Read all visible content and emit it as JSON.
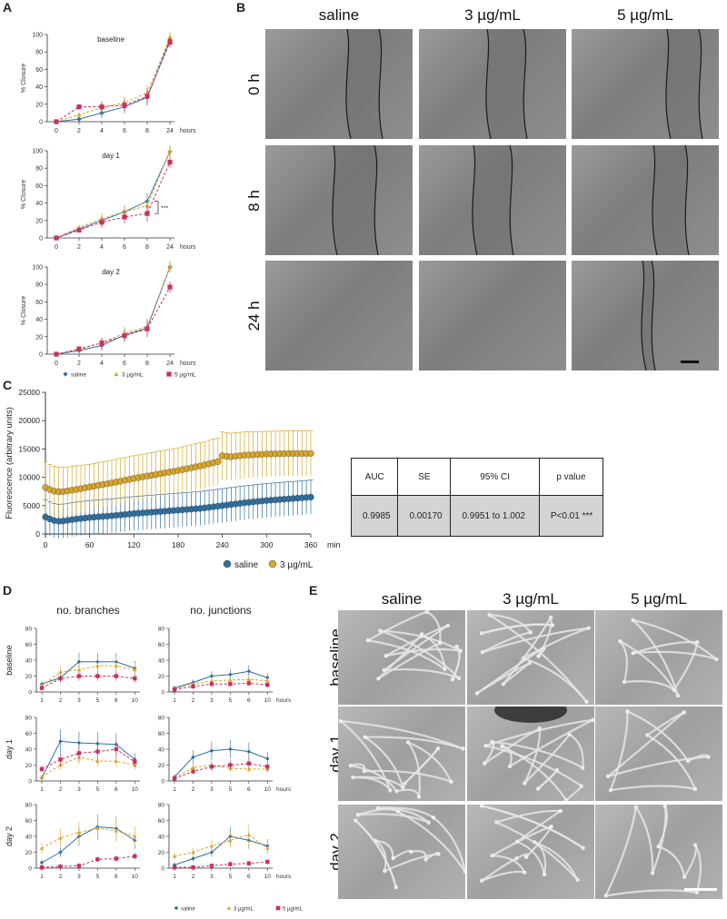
{
  "panels": {
    "A": "A",
    "B": "B",
    "C": "C",
    "D": "D",
    "E": "E"
  },
  "colors": {
    "saline": "#2f6f9f",
    "low": "#d8a628",
    "high": "#c8325e",
    "dark_line": "#1b1b1b"
  },
  "closure": {
    "ylabel": "% Closure",
    "x_unit": "hours",
    "x_ticks": [
      "0",
      "2",
      "4",
      "6",
      "8",
      "24"
    ],
    "y_ticks": [
      "0",
      "20",
      "40",
      "60",
      "80",
      "100"
    ],
    "legend": [
      "saline",
      "3 µg/mL",
      "5 µg/mL"
    ],
    "significance": "***"
  },
  "fluorescence": {
    "ylabel": "Fluorescence (arbitrary units)",
    "x_unit": "min",
    "x_ticks": [
      "0",
      "60",
      "120",
      "180",
      "240",
      "300",
      "360"
    ],
    "y_ticks": [
      "0",
      "5000",
      "10000",
      "15000",
      "20000",
      "25000"
    ],
    "legend": [
      "saline",
      "3 µg/mL"
    ]
  },
  "auc_table": {
    "headers": [
      "AUC",
      "SE",
      "95%  CI",
      "p value"
    ],
    "values": [
      "0.9985",
      "0.00170",
      "0.9951 to 1.002",
      "P<0.01 ***"
    ]
  },
  "tubes": {
    "titles": [
      "no. branches",
      "no. junctions"
    ],
    "x_ticks": [
      "1",
      "2",
      "3",
      "5",
      "6",
      "10"
    ],
    "x_unit": "hours",
    "y_ticks": [
      "0",
      "20",
      "40",
      "60",
      "80"
    ],
    "legend": [
      "saline",
      "3 µg/mL",
      "5 µg/mL"
    ]
  },
  "scratch": {
    "columns": [
      "saline",
      "3 µg/mL",
      "5 µg/mL"
    ],
    "rows": [
      "0 h",
      "8 h",
      "24 h"
    ]
  },
  "tube_images": {
    "columns": [
      "saline",
      "3 µg/mL",
      "5 µg/mL"
    ],
    "rows": [
      "baseline",
      "day 1",
      "day 2"
    ]
  },
  "chart_data": [
    {
      "type": "line",
      "panel": "A",
      "title": "baseline",
      "xlabel": "",
      "ylabel": "% Closure",
      "x": [
        "0",
        "2",
        "4",
        "6",
        "8",
        "24"
      ],
      "ylim": [
        0,
        100
      ],
      "series": [
        {
          "name": "saline",
          "values": [
            0,
            3,
            10,
            17,
            28,
            94
          ]
        },
        {
          "name": "3 µg/mL",
          "values": [
            0,
            8,
            16,
            22,
            33,
            97
          ]
        },
        {
          "name": "5 µg/mL",
          "values": [
            0,
            17,
            17,
            19,
            29,
            91
          ]
        }
      ]
    },
    {
      "type": "line",
      "panel": "A",
      "title": "day 1",
      "xlabel": "",
      "ylabel": "% Closure",
      "x": [
        "0",
        "2",
        "4",
        "6",
        "8",
        "24"
      ],
      "ylim": [
        0,
        100
      ],
      "series": [
        {
          "name": "saline",
          "values": [
            0,
            10,
            20,
            30,
            42,
            99
          ]
        },
        {
          "name": "3 µg/mL",
          "values": [
            0,
            12,
            22,
            30,
            37,
            100
          ]
        },
        {
          "name": "5 µg/mL",
          "values": [
            0,
            9,
            18,
            24,
            28,
            87
          ]
        }
      ]
    },
    {
      "type": "line",
      "panel": "A",
      "title": "day 2",
      "xlabel": "",
      "ylabel": "% Closure",
      "x": [
        "0",
        "2",
        "4",
        "6",
        "8",
        "24"
      ],
      "ylim": [
        0,
        100
      ],
      "series": [
        {
          "name": "saline",
          "values": [
            0,
            4,
            10,
            22,
            30,
            100
          ]
        },
        {
          "name": "3 µg/mL",
          "values": [
            0,
            5,
            13,
            24,
            32,
            100
          ]
        },
        {
          "name": "5 µg/mL",
          "values": [
            0,
            6,
            13,
            21,
            29,
            77
          ]
        }
      ]
    },
    {
      "type": "line",
      "panel": "C",
      "title": "",
      "xlabel": "min",
      "ylabel": "Fluorescence (arbitrary units)",
      "ylim": [
        0,
        25000
      ],
      "xlim": [
        0,
        360
      ],
      "series": [
        {
          "name": "saline",
          "points": [
            [
              0,
              3000
            ],
            [
              10,
              2400
            ],
            [
              20,
              2200
            ],
            [
              40,
              2600
            ],
            [
              60,
              2900
            ],
            [
              90,
              3200
            ],
            [
              120,
              3600
            ],
            [
              150,
              3900
            ],
            [
              180,
              4200
            ],
            [
              210,
              4500
            ],
            [
              240,
              5000
            ],
            [
              270,
              5500
            ],
            [
              300,
              5900
            ],
            [
              330,
              6200
            ],
            [
              360,
              6500
            ]
          ],
          "error": [
            [
              0,
              3000
            ],
            [
              30,
              3000
            ],
            [
              60,
              3000
            ],
            [
              120,
              3000
            ],
            [
              180,
              3000
            ],
            [
              240,
              3000
            ],
            [
              300,
              3000
            ],
            [
              360,
              3000
            ]
          ]
        },
        {
          "name": "3 µg/mL",
          "points": [
            [
              0,
              8200
            ],
            [
              10,
              7600
            ],
            [
              20,
              7400
            ],
            [
              40,
              7800
            ],
            [
              60,
              8300
            ],
            [
              90,
              9000
            ],
            [
              120,
              9800
            ],
            [
              150,
              10500
            ],
            [
              180,
              11200
            ],
            [
              210,
              12000
            ],
            [
              235,
              12800
            ],
            [
              240,
              13800
            ],
            [
              250,
              13600
            ],
            [
              270,
              13900
            ],
            [
              300,
              14100
            ],
            [
              330,
              14200
            ],
            [
              360,
              14200
            ]
          ],
          "error": [
            [
              0,
              4500
            ],
            [
              60,
              4000
            ],
            [
              120,
              4000
            ],
            [
              180,
              4000
            ],
            [
              240,
              4200
            ],
            [
              300,
              4000
            ],
            [
              360,
              4000
            ]
          ]
        }
      ]
    },
    {
      "type": "line",
      "panel": "D",
      "title": "no. branches",
      "row": "baseline",
      "x": [
        "1",
        "2",
        "3",
        "5",
        "6",
        "10"
      ],
      "ylim": [
        0,
        80
      ],
      "series": [
        {
          "name": "saline",
          "values": [
            10,
            18,
            38,
            38,
            38,
            30
          ]
        },
        {
          "name": "3 µg/mL",
          "values": [
            8,
            25,
            28,
            33,
            33,
            28
          ]
        },
        {
          "name": "5 µg/mL",
          "values": [
            5,
            17,
            20,
            20,
            20,
            17
          ]
        }
      ]
    },
    {
      "type": "line",
      "panel": "D",
      "title": "no. junctions",
      "row": "baseline",
      "x": [
        "1",
        "2",
        "3",
        "5",
        "6",
        "10"
      ],
      "ylim": [
        0,
        80
      ],
      "series": [
        {
          "name": "saline",
          "values": [
            5,
            12,
            20,
            22,
            26,
            18
          ]
        },
        {
          "name": "3 µg/mL",
          "values": [
            4,
            10,
            14,
            15,
            16,
            14
          ]
        },
        {
          "name": "5 µg/mL",
          "values": [
            3,
            7,
            10,
            10,
            11,
            9
          ]
        }
      ]
    },
    {
      "type": "line",
      "panel": "D",
      "title": "no. branches",
      "row": "day 1",
      "x": [
        "1",
        "2",
        "3",
        "5",
        "6",
        "10"
      ],
      "ylim": [
        0,
        80
      ],
      "series": [
        {
          "name": "saline",
          "values": [
            4,
            50,
            48,
            47,
            46,
            27
          ]
        },
        {
          "name": "3 µg/mL",
          "values": [
            5,
            20,
            30,
            25,
            25,
            20
          ]
        },
        {
          "name": "5 µg/mL",
          "values": [
            15,
            27,
            35,
            37,
            40,
            24
          ]
        }
      ]
    },
    {
      "type": "line",
      "panel": "D",
      "title": "no. junctions",
      "row": "day 1",
      "x": [
        "1",
        "2",
        "3",
        "5",
        "6",
        "10"
      ],
      "ylim": [
        0,
        80
      ],
      "series": [
        {
          "name": "saline",
          "values": [
            5,
            30,
            38,
            40,
            37,
            28
          ]
        },
        {
          "name": "3 µg/mL",
          "values": [
            4,
            17,
            20,
            16,
            15,
            15
          ]
        },
        {
          "name": "5 µg/mL",
          "values": [
            3,
            12,
            18,
            20,
            22,
            18
          ]
        }
      ]
    },
    {
      "type": "line",
      "panel": "D",
      "title": "no. branches",
      "row": "day 2",
      "x": [
        "1",
        "2",
        "3",
        "5",
        "6",
        "10"
      ],
      "ylim": [
        0,
        80
      ],
      "series": [
        {
          "name": "saline",
          "values": [
            7,
            20,
            40,
            52,
            50,
            35
          ]
        },
        {
          "name": "3 µg/mL",
          "values": [
            25,
            38,
            45,
            50,
            47,
            40
          ]
        },
        {
          "name": "5 µg/mL",
          "values": [
            1,
            2,
            3,
            11,
            12,
            15
          ]
        }
      ]
    },
    {
      "type": "line",
      "panel": "D",
      "title": "no. junctions",
      "row": "day 2",
      "x": [
        "1",
        "2",
        "3",
        "5",
        "6",
        "10"
      ],
      "ylim": [
        0,
        80
      ],
      "series": [
        {
          "name": "saline",
          "values": [
            4,
            12,
            20,
            40,
            35,
            28
          ]
        },
        {
          "name": "3 µg/mL",
          "values": [
            15,
            20,
            28,
            35,
            42,
            25
          ]
        },
        {
          "name": "5 µg/mL",
          "values": [
            1,
            1,
            3,
            5,
            6,
            8
          ]
        }
      ]
    }
  ]
}
